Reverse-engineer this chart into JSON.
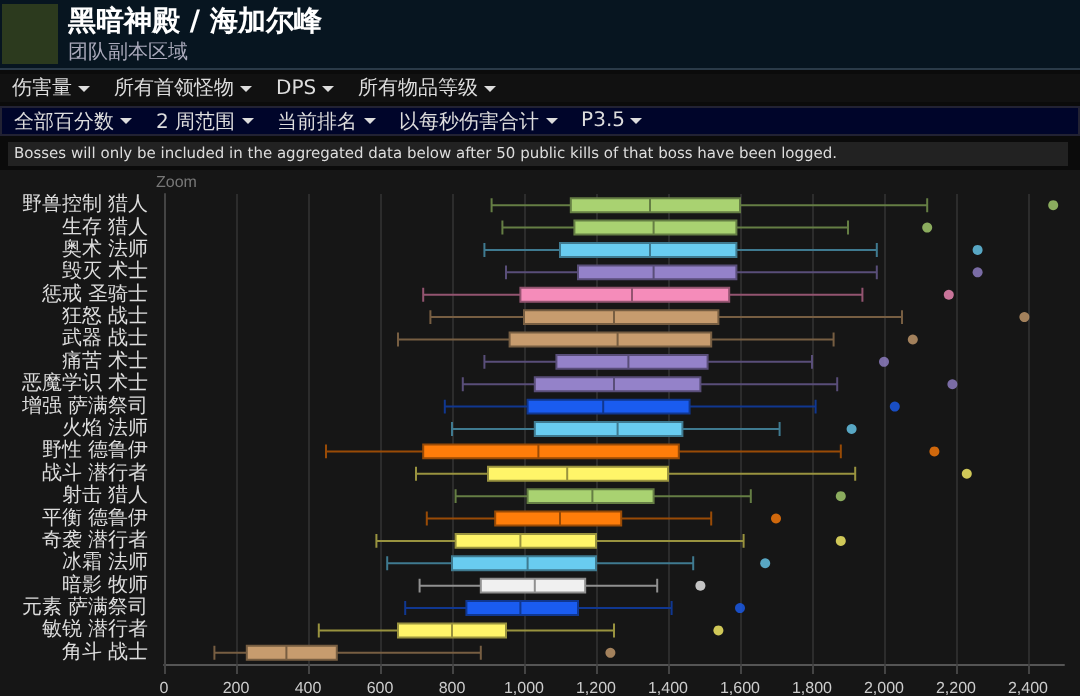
{
  "chart_data": {
    "type": "box",
    "title": "黑暗神殿 / 海加尔峰",
    "subtitle": "团队副本区域",
    "annotations": [
      "伤害量",
      "所有首领怪物",
      "DPS",
      "所有物品等级",
      "全部百分数",
      "2 周范围",
      "当前排名",
      "以每秒伤害合计",
      "P3.5",
      "Bosses will only be included in the aggregated data below after 50 public kills of that boss have been logged.",
      "Zoom"
    ],
    "orientation": "horizontal",
    "categories": [
      "野兽控制 猎人",
      "生存 猎人",
      "奥术 法师",
      "毁灭 术士",
      "惩戒 圣骑士",
      "狂怒 战士",
      "武器 战士",
      "痛苦 术士",
      "恶魔学识 术士",
      "增强 萨满祭司",
      "火焰 法师",
      "野性 德鲁伊",
      "战斗 潜行者",
      "射击 猎人",
      "平衡 德鲁伊",
      "奇袭 潜行者",
      "冰霜 法师",
      "暗影 牧师",
      "元素 萨满祭司",
      "敏锐 潜行者",
      "角斗 战士"
    ],
    "colors": [
      "#a9d271",
      "#a9d271",
      "#69ccf0",
      "#9482c9",
      "#f58cba",
      "#c79c6e",
      "#c79c6e",
      "#9482c9",
      "#9482c9",
      "#1a5cf0",
      "#69ccf0",
      "#ff7d0a",
      "#fff569",
      "#a9d271",
      "#ff7d0a",
      "#fff569",
      "#69ccf0",
      "#f0f0f0",
      "#1a5cf0",
      "#fff569",
      "#c79c6e"
    ],
    "boxes": [
      {
        "low": 910,
        "q1": 1130,
        "median": 1350,
        "q3": 1600,
        "high": 2120,
        "outliers": [
          2470
        ]
      },
      {
        "low": 940,
        "q1": 1140,
        "median": 1360,
        "q3": 1590,
        "high": 1900,
        "outliers": [
          2120
        ]
      },
      {
        "low": 890,
        "q1": 1100,
        "median": 1350,
        "q3": 1590,
        "high": 1980,
        "outliers": [
          2260
        ]
      },
      {
        "low": 950,
        "q1": 1150,
        "median": 1360,
        "q3": 1590,
        "high": 1980,
        "outliers": [
          2260
        ]
      },
      {
        "low": 720,
        "q1": 990,
        "median": 1300,
        "q3": 1570,
        "high": 1940,
        "outliers": [
          2180
        ]
      },
      {
        "low": 740,
        "q1": 1000,
        "median": 1250,
        "q3": 1540,
        "high": 2050,
        "outliers": [
          2390
        ]
      },
      {
        "low": 650,
        "q1": 960,
        "median": 1260,
        "q3": 1520,
        "high": 1860,
        "outliers": [
          2080
        ]
      },
      {
        "low": 890,
        "q1": 1090,
        "median": 1290,
        "q3": 1510,
        "high": 1800,
        "outliers": [
          2000
        ]
      },
      {
        "low": 830,
        "q1": 1030,
        "median": 1250,
        "q3": 1490,
        "high": 1870,
        "outliers": [
          2190
        ]
      },
      {
        "low": 780,
        "q1": 1010,
        "median": 1220,
        "q3": 1460,
        "high": 1810,
        "outliers": [
          2030
        ]
      },
      {
        "low": 800,
        "q1": 1030,
        "median": 1260,
        "q3": 1440,
        "high": 1710,
        "outliers": [
          1910
        ]
      },
      {
        "low": 450,
        "q1": 720,
        "median": 1040,
        "q3": 1430,
        "high": 1880,
        "outliers": [
          2140
        ]
      },
      {
        "low": 700,
        "q1": 900,
        "median": 1120,
        "q3": 1400,
        "high": 1920,
        "outliers": [
          2230
        ]
      },
      {
        "low": 810,
        "q1": 1010,
        "median": 1190,
        "q3": 1360,
        "high": 1630,
        "outliers": [
          1880
        ]
      },
      {
        "low": 730,
        "q1": 920,
        "median": 1100,
        "q3": 1270,
        "high": 1520,
        "outliers": [
          1700
        ]
      },
      {
        "low": 590,
        "q1": 810,
        "median": 990,
        "q3": 1200,
        "high": 1610,
        "outliers": [
          1880
        ]
      },
      {
        "low": 620,
        "q1": 800,
        "median": 1010,
        "q3": 1200,
        "high": 1470,
        "outliers": [
          1670
        ]
      },
      {
        "low": 710,
        "q1": 880,
        "median": 1030,
        "q3": 1170,
        "high": 1370,
        "outliers": [
          1490
        ]
      },
      {
        "low": 670,
        "q1": 840,
        "median": 990,
        "q3": 1150,
        "high": 1410,
        "outliers": [
          1600
        ]
      },
      {
        "low": 430,
        "q1": 650,
        "median": 800,
        "q3": 950,
        "high": 1250,
        "outliers": [
          1540
        ]
      },
      {
        "low": 140,
        "q1": 230,
        "median": 340,
        "q3": 480,
        "high": 880,
        "outliers": [
          1240
        ]
      }
    ],
    "xlim": [
      0,
      2500
    ],
    "xticks": [
      0,
      200,
      400,
      600,
      800,
      {
        "value": 1000,
        "label": "1,000"
      },
      {
        "value": 1200,
        "label": "1,200"
      },
      {
        "value": 1400,
        "label": "1,400"
      },
      {
        "value": 1600,
        "label": "1,600"
      },
      {
        "value": 1800,
        "label": "1,800"
      },
      {
        "value": 2000,
        "label": "2,000"
      },
      {
        "value": 2200,
        "label": "2,200"
      },
      {
        "value": 2400,
        "label": "2,400"
      }
    ],
    "grid": "x",
    "marker": "circle"
  }
}
